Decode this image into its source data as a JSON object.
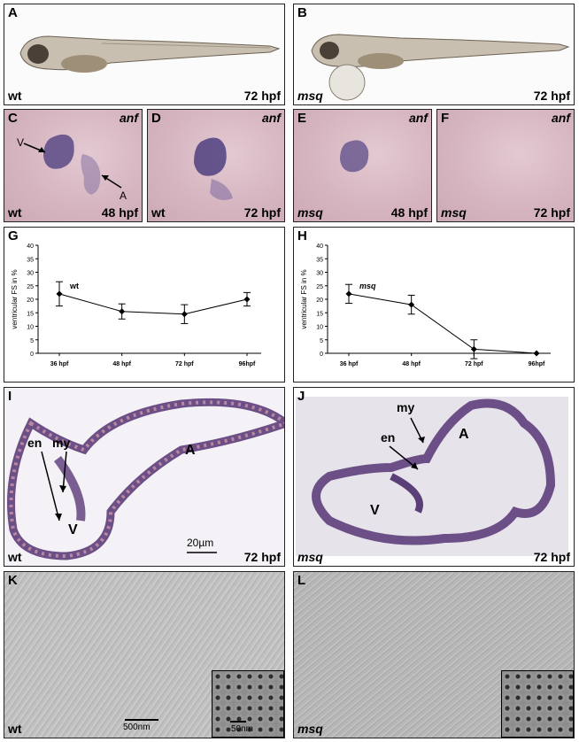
{
  "panels": {
    "A": {
      "letter": "A",
      "genotype": "wt",
      "stage": "72 hpf"
    },
    "B": {
      "letter": "B",
      "genotype": "msq",
      "stage": "72 hpf"
    },
    "C": {
      "letter": "C",
      "gene": "anf",
      "genotype": "wt",
      "stage": "48 hpf",
      "label_v": "V",
      "label_a": "A"
    },
    "D": {
      "letter": "D",
      "gene": "anf",
      "genotype": "wt",
      "stage": "72 hpf"
    },
    "E": {
      "letter": "E",
      "gene": "anf",
      "genotype": "msq",
      "stage": "48 hpf"
    },
    "F": {
      "letter": "F",
      "gene": "anf",
      "genotype": "msq",
      "stage": "72 hpf"
    },
    "G": {
      "letter": "G",
      "series_label": "wt"
    },
    "H": {
      "letter": "H",
      "series_label": "msq"
    },
    "I": {
      "letter": "I",
      "genotype": "wt",
      "stage": "72 hpf",
      "label_en": "en",
      "label_my": "my",
      "label_a": "A",
      "label_v": "V",
      "scale": "20µm"
    },
    "J": {
      "letter": "J",
      "genotype": "msq",
      "stage": "72 hpf",
      "label_en": "en",
      "label_my": "my",
      "label_a": "A",
      "label_v": "V"
    },
    "K": {
      "letter": "K",
      "genotype": "wt",
      "scale": "500nm",
      "inset_scale": "50nm"
    },
    "L": {
      "letter": "L",
      "genotype": "msq"
    }
  },
  "chart_data": [
    {
      "type": "line",
      "panel": "G",
      "ylabel": "ventricular FS in %",
      "categories": [
        "36 hpf",
        "48 hpf",
        "72 hpf",
        "96hpf"
      ],
      "yticks": [
        0,
        5,
        10,
        15,
        20,
        25,
        30,
        35,
        40
      ],
      "ylim": [
        0,
        40
      ],
      "series": [
        {
          "name": "wt",
          "values": [
            22,
            15.5,
            14.5,
            20
          ],
          "errors": [
            4.5,
            2.8,
            3.5,
            2.5
          ]
        }
      ],
      "grid": false
    },
    {
      "type": "line",
      "panel": "H",
      "ylabel": "ventricular FS in %",
      "categories": [
        "36 hpf",
        "48 hpf",
        "72 hpf",
        "96hpf"
      ],
      "yticks": [
        0,
        5,
        10,
        15,
        20,
        25,
        30,
        35,
        40
      ],
      "ylim": [
        0,
        40
      ],
      "series": [
        {
          "name": "msq",
          "values": [
            22,
            18,
            1.5,
            0
          ],
          "errors": [
            3.5,
            3.5,
            3.5,
            0
          ]
        }
      ],
      "grid": false
    }
  ]
}
